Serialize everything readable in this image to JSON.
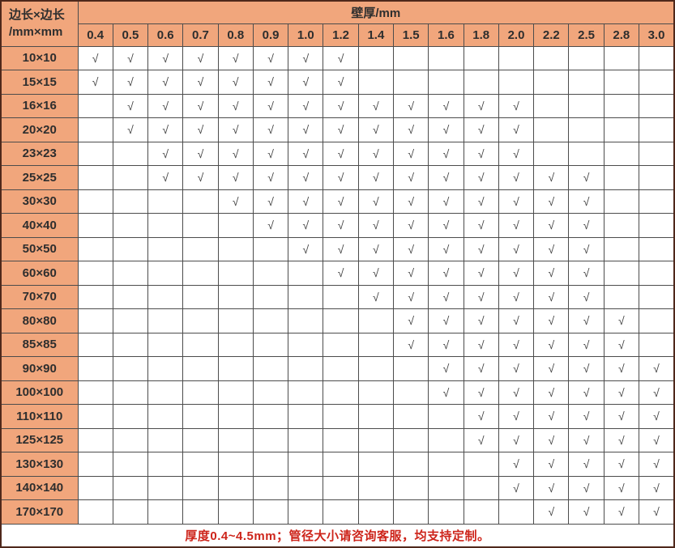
{
  "table": {
    "corner_header_line1": "边长×边长",
    "corner_header_line2": "/mm×mm",
    "thickness_header": "壁厚/mm",
    "thickness_values": [
      "0.4",
      "0.5",
      "0.6",
      "0.7",
      "0.8",
      "0.9",
      "1.0",
      "1.2",
      "1.4",
      "1.5",
      "1.6",
      "1.8",
      "2.0",
      "2.2",
      "2.5",
      "2.8",
      "3.0"
    ],
    "check_mark": "√",
    "rows": [
      {
        "label": "10×10",
        "checked": [
          "0.4",
          "0.5",
          "0.6",
          "0.7",
          "0.8",
          "0.9",
          "1.0",
          "1.2"
        ]
      },
      {
        "label": "15×15",
        "checked": [
          "0.4",
          "0.5",
          "0.6",
          "0.7",
          "0.8",
          "0.9",
          "1.0",
          "1.2"
        ]
      },
      {
        "label": "16×16",
        "checked": [
          "0.5",
          "0.6",
          "0.7",
          "0.8",
          "0.9",
          "1.0",
          "1.2",
          "1.4",
          "1.5",
          "1.6",
          "1.8",
          "2.0"
        ]
      },
      {
        "label": "20×20",
        "checked": [
          "0.5",
          "0.6",
          "0.7",
          "0.8",
          "0.9",
          "1.0",
          "1.2",
          "1.4",
          "1.5",
          "1.6",
          "1.8",
          "2.0"
        ]
      },
      {
        "label": "23×23",
        "checked": [
          "0.6",
          "0.7",
          "0.8",
          "0.9",
          "1.0",
          "1.2",
          "1.4",
          "1.5",
          "1.6",
          "1.8",
          "2.0"
        ]
      },
      {
        "label": "25×25",
        "checked": [
          "0.6",
          "0.7",
          "0.8",
          "0.9",
          "1.0",
          "1.2",
          "1.4",
          "1.5",
          "1.6",
          "1.8",
          "2.0",
          "2.2",
          "2.5"
        ]
      },
      {
        "label": "30×30",
        "checked": [
          "0.8",
          "0.9",
          "1.0",
          "1.2",
          "1.4",
          "1.5",
          "1.6",
          "1.8",
          "2.0",
          "2.2",
          "2.5"
        ]
      },
      {
        "label": "40×40",
        "checked": [
          "0.9",
          "1.0",
          "1.2",
          "1.4",
          "1.5",
          "1.6",
          "1.8",
          "2.0",
          "2.2",
          "2.5"
        ]
      },
      {
        "label": "50×50",
        "checked": [
          "1.0",
          "1.2",
          "1.4",
          "1.5",
          "1.6",
          "1.8",
          "2.0",
          "2.2",
          "2.5"
        ]
      },
      {
        "label": "60×60",
        "checked": [
          "1.2",
          "1.4",
          "1.5",
          "1.6",
          "1.8",
          "2.0",
          "2.2",
          "2.5"
        ]
      },
      {
        "label": "70×70",
        "checked": [
          "1.4",
          "1.5",
          "1.6",
          "1.8",
          "2.0",
          "2.2",
          "2.5"
        ]
      },
      {
        "label": "80×80",
        "checked": [
          "1.5",
          "1.6",
          "1.8",
          "2.0",
          "2.2",
          "2.5",
          "2.8"
        ]
      },
      {
        "label": "85×85",
        "checked": [
          "1.5",
          "1.6",
          "1.8",
          "2.0",
          "2.2",
          "2.5",
          "2.8"
        ]
      },
      {
        "label": "90×90",
        "checked": [
          "1.6",
          "1.8",
          "2.0",
          "2.2",
          "2.5",
          "2.8",
          "3.0"
        ]
      },
      {
        "label": "100×100",
        "checked": [
          "1.6",
          "1.8",
          "2.0",
          "2.2",
          "2.5",
          "2.8",
          "3.0"
        ]
      },
      {
        "label": "110×110",
        "checked": [
          "1.8",
          "2.0",
          "2.2",
          "2.5",
          "2.8",
          "3.0"
        ]
      },
      {
        "label": "125×125",
        "checked": [
          "1.8",
          "2.0",
          "2.2",
          "2.5",
          "2.8",
          "3.0"
        ]
      },
      {
        "label": "130×130",
        "checked": [
          "2.0",
          "2.2",
          "2.5",
          "2.8",
          "3.0"
        ]
      },
      {
        "label": "140×140",
        "checked": [
          "2.0",
          "2.2",
          "2.5",
          "2.8",
          "3.0"
        ]
      },
      {
        "label": "170×170",
        "checked": [
          "2.2",
          "2.5",
          "2.8",
          "3.0"
        ]
      }
    ],
    "footer_note": "厚度0.4~4.5mm；管径大小请咨询客服，均支持定制。"
  },
  "colors": {
    "header_bg": "#f1a67c",
    "grid_border": "#4c4c4c",
    "outer_border": "#4f281b",
    "text": "#333333",
    "check": "#3f3f3f",
    "footer_text": "#cd241a",
    "cell_bg": "#ffffff"
  }
}
